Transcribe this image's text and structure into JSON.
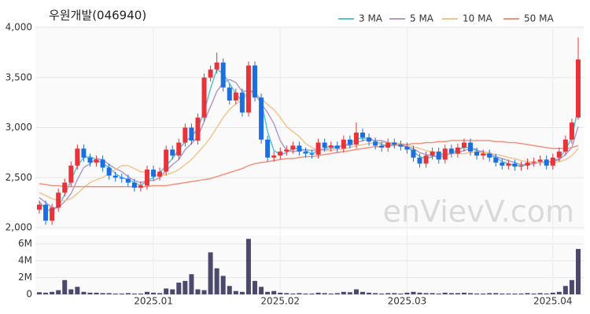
{
  "chart_data": {
    "type": "candlestick",
    "title": "우원개발(046940)",
    "watermark": "enVievV.com",
    "categories": [
      null,
      null,
      null,
      null,
      null,
      null,
      null,
      null,
      null,
      null,
      null,
      null,
      null,
      null,
      null,
      null,
      null,
      null,
      "2025.01",
      null,
      null,
      null,
      null,
      null,
      null,
      null,
      null,
      null,
      null,
      null,
      null,
      null,
      null,
      null,
      null,
      null,
      null,
      null,
      "2025.02",
      null,
      null,
      null,
      null,
      null,
      null,
      null,
      null,
      null,
      null,
      null,
      null,
      null,
      null,
      null,
      null,
      null,
      null,
      null,
      "2025.03",
      null,
      null,
      null,
      null,
      null,
      null,
      null,
      null,
      null,
      null,
      null,
      null,
      null,
      null,
      null,
      null,
      null,
      null,
      null,
      null,
      null,
      null,
      "2025.04",
      null,
      null,
      null,
      null
    ],
    "open": [
      2180,
      2230,
      2070,
      2200,
      2350,
      2450,
      2620,
      2790,
      2700,
      2650,
      2680,
      2600,
      2520,
      2500,
      2490,
      2450,
      2400,
      2420,
      2580,
      2510,
      2560,
      2780,
      2720,
      2850,
      3000,
      2870,
      3100,
      3500,
      3580,
      3650,
      3400,
      3270,
      3350,
      3150,
      3620,
      3300,
      2880,
      2700,
      2720,
      2760,
      2780,
      2820,
      2760,
      2740,
      2730,
      2850,
      2800,
      2820,
      2790,
      2880,
      2830,
      2950,
      2900,
      2860,
      2820,
      2800,
      2850,
      2830,
      2810,
      2780,
      2700,
      2640,
      2720,
      2760,
      2680,
      2790,
      2740,
      2800,
      2850,
      2760,
      2720,
      2740,
      2700,
      2650,
      2620,
      2640,
      2610,
      2620,
      2650,
      2660,
      2680,
      2620,
      2700,
      2760,
      2880,
      3100
    ],
    "high": [
      2270,
      2270,
      2240,
      2390,
      2490,
      2660,
      2830,
      2830,
      2740,
      2720,
      2720,
      2640,
      2560,
      2540,
      2530,
      2490,
      2460,
      2620,
      2620,
      2600,
      2820,
      2820,
      2890,
      3040,
      3040,
      3140,
      3540,
      3620,
      3750,
      3690,
      3440,
      3390,
      3390,
      3660,
      3660,
      3340,
      2920,
      2760,
      2800,
      2820,
      2860,
      2860,
      2800,
      2780,
      2890,
      2890,
      2860,
      2860,
      2920,
      2920,
      3050,
      2990,
      2940,
      2900,
      2860,
      2890,
      2890,
      2870,
      2850,
      2820,
      2740,
      2760,
      2800,
      2800,
      2830,
      2830,
      2840,
      2890,
      2890,
      2800,
      2780,
      2780,
      2740,
      2690,
      2680,
      2680,
      2660,
      2690,
      2700,
      2720,
      2720,
      2740,
      2800,
      2920,
      3090,
      3900
    ],
    "low": [
      2140,
      2030,
      2030,
      2160,
      2310,
      2410,
      2580,
      2660,
      2610,
      2610,
      2560,
      2480,
      2460,
      2450,
      2410,
      2360,
      2360,
      2380,
      2470,
      2470,
      2520,
      2680,
      2680,
      2810,
      2830,
      2830,
      3060,
      3460,
      3540,
      3360,
      3230,
      3230,
      3110,
      3110,
      3260,
      2840,
      2660,
      2660,
      2680,
      2720,
      2740,
      2720,
      2700,
      2690,
      2690,
      2760,
      2760,
      2750,
      2750,
      2790,
      2790,
      2860,
      2820,
      2780,
      2760,
      2760,
      2790,
      2770,
      2740,
      2660,
      2600,
      2600,
      2680,
      2640,
      2640,
      2700,
      2700,
      2760,
      2720,
      2680,
      2680,
      2660,
      2610,
      2580,
      2580,
      2570,
      2570,
      2580,
      2610,
      2620,
      2580,
      2580,
      2660,
      2720,
      2840,
      3080
    ],
    "close": [
      2230,
      2070,
      2200,
      2350,
      2450,
      2620,
      2790,
      2700,
      2650,
      2680,
      2600,
      2520,
      2500,
      2490,
      2450,
      2400,
      2420,
      2580,
      2510,
      2560,
      2780,
      2720,
      2850,
      3000,
      2870,
      3100,
      3500,
      3580,
      3650,
      3400,
      3270,
      3350,
      3150,
      3620,
      3300,
      2880,
      2700,
      2720,
      2760,
      2780,
      2820,
      2760,
      2740,
      2730,
      2850,
      2800,
      2820,
      2790,
      2880,
      2830,
      2950,
      2900,
      2860,
      2820,
      2800,
      2850,
      2830,
      2810,
      2780,
      2700,
      2640,
      2720,
      2760,
      2680,
      2790,
      2740,
      2800,
      2850,
      2760,
      2720,
      2740,
      2700,
      2650,
      2620,
      2640,
      2610,
      2620,
      2650,
      2660,
      2680,
      2620,
      2700,
      2760,
      2880,
      3050,
      3680
    ],
    "volume": [
      250000,
      200000,
      300000,
      500000,
      1700000,
      600000,
      900000,
      300000,
      200000,
      200000,
      150000,
      150000,
      100000,
      100000,
      150000,
      100000,
      100000,
      300000,
      200000,
      150000,
      700000,
      600000,
      1400000,
      1600000,
      2400000,
      600000,
      500000,
      5000000,
      3100000,
      2200000,
      1000000,
      400000,
      300000,
      6600000,
      1600000,
      900000,
      300000,
      400000,
      200000,
      150000,
      100000,
      150000,
      100000,
      100000,
      200000,
      150000,
      100000,
      150000,
      300000,
      250000,
      600000,
      300000,
      200000,
      150000,
      100000,
      150000,
      150000,
      100000,
      200000,
      300000,
      200000,
      150000,
      150000,
      100000,
      200000,
      150000,
      150000,
      200000,
      150000,
      100000,
      100000,
      150000,
      150000,
      100000,
      100000,
      100000,
      100000,
      150000,
      100000,
      150000,
      100000,
      200000,
      300000,
      1000000,
      1700000,
      5400000
    ],
    "up_color": "#e8333a",
    "down_color": "#1d6fe0",
    "volume_color": "#4b4a6e",
    "ylim": [
      2000,
      4000
    ],
    "yticks": [
      {
        "value": 2000,
        "label": "2,000"
      },
      {
        "value": 2500,
        "label": "2,500"
      },
      {
        "value": 3000,
        "label": "3,000"
      },
      {
        "value": 3500,
        "label": "3,500"
      },
      {
        "value": 4000,
        "label": "4,000"
      }
    ],
    "volume_ylim": [
      0,
      7000000
    ],
    "volume_yticks": [
      0,
      {
        "value": 2000000,
        "label": "2M"
      },
      {
        "value": 4000000,
        "label": "4M"
      },
      {
        "value": 6000000,
        "label": "6M"
      }
    ],
    "grid": true,
    "series": [
      {
        "name": "3 MA",
        "color": "#56c5cf",
        "values": [
          2260,
          2180,
          2170,
          2210,
          2330,
          2470,
          2620,
          2700,
          2710,
          2680,
          2640,
          2600,
          2540,
          2500,
          2480,
          2450,
          2420,
          2470,
          2500,
          2550,
          2620,
          2690,
          2780,
          2860,
          2910,
          2990,
          3160,
          3390,
          3580,
          3540,
          3440,
          3340,
          3260,
          3370,
          3360,
          3270,
          2960,
          2770,
          2730,
          2750,
          2790,
          2790,
          2770,
          2740,
          2770,
          2790,
          2820,
          2800,
          2830,
          2830,
          2890,
          2890,
          2900,
          2860,
          2830,
          2820,
          2830,
          2830,
          2810,
          2760,
          2710,
          2690,
          2710,
          2720,
          2740,
          2740,
          2780,
          2800,
          2800,
          2780,
          2740,
          2720,
          2700,
          2660,
          2640,
          2620,
          2620,
          2630,
          2640,
          2660,
          2650,
          2670,
          2690,
          2780,
          2900,
          3200
        ]
      },
      {
        "name": "5 MA",
        "color": "#ae9bcc",
        "values": [
          2300,
          2250,
          2200,
          2200,
          2260,
          2340,
          2480,
          2600,
          2640,
          2690,
          2680,
          2630,
          2590,
          2560,
          2510,
          2470,
          2450,
          2470,
          2470,
          2500,
          2570,
          2630,
          2680,
          2780,
          2840,
          2910,
          3060,
          3210,
          3360,
          3450,
          3480,
          3450,
          3360,
          3370,
          3340,
          3240,
          3150,
          3040,
          2870,
          2770,
          2760,
          2770,
          2780,
          2770,
          2780,
          2780,
          2790,
          2800,
          2830,
          2820,
          2850,
          2870,
          2880,
          2870,
          2870,
          2850,
          2830,
          2820,
          2810,
          2790,
          2750,
          2730,
          2720,
          2700,
          2720,
          2740,
          2750,
          2770,
          2790,
          2770,
          2760,
          2740,
          2710,
          2690,
          2670,
          2650,
          2630,
          2630,
          2640,
          2650,
          2650,
          2660,
          2680,
          2730,
          2800,
          3010
        ]
      },
      {
        "name": "10 MA",
        "color": "#f2c58e",
        "values": [
          2350,
          2320,
          2290,
          2270,
          2270,
          2290,
          2340,
          2400,
          2450,
          2480,
          2500,
          2540,
          2580,
          2620,
          2620,
          2590,
          2560,
          2550,
          2530,
          2520,
          2530,
          2550,
          2580,
          2630,
          2680,
          2750,
          2820,
          2900,
          3000,
          3100,
          3180,
          3240,
          3270,
          3350,
          3350,
          3290,
          3230,
          3180,
          3100,
          3010,
          2960,
          2910,
          2840,
          2800,
          2770,
          2770,
          2770,
          2780,
          2790,
          2800,
          2820,
          2830,
          2840,
          2850,
          2850,
          2850,
          2850,
          2840,
          2830,
          2810,
          2790,
          2770,
          2760,
          2740,
          2740,
          2740,
          2740,
          2740,
          2750,
          2750,
          2750,
          2750,
          2730,
          2720,
          2700,
          2690,
          2670,
          2660,
          2650,
          2650,
          2650,
          2650,
          2660,
          2680,
          2720,
          2790
        ]
      },
      {
        "name": "50 MA",
        "color": "#f0937e",
        "values": [
          2440,
          2430,
          2420,
          2420,
          2410,
          2410,
          2410,
          2410,
          2410,
          2410,
          2410,
          2410,
          2410,
          2410,
          2410,
          2410,
          2410,
          2410,
          2420,
          2420,
          2420,
          2430,
          2440,
          2450,
          2460,
          2470,
          2480,
          2490,
          2510,
          2530,
          2550,
          2570,
          2590,
          2620,
          2640,
          2650,
          2660,
          2670,
          2680,
          2690,
          2690,
          2700,
          2710,
          2710,
          2720,
          2730,
          2740,
          2750,
          2760,
          2770,
          2780,
          2790,
          2800,
          2810,
          2810,
          2820,
          2820,
          2830,
          2830,
          2840,
          2840,
          2850,
          2850,
          2860,
          2860,
          2870,
          2870,
          2870,
          2870,
          2870,
          2870,
          2870,
          2860,
          2860,
          2850,
          2850,
          2840,
          2830,
          2820,
          2810,
          2800,
          2790,
          2790,
          2790,
          2800,
          2820
        ]
      }
    ]
  }
}
